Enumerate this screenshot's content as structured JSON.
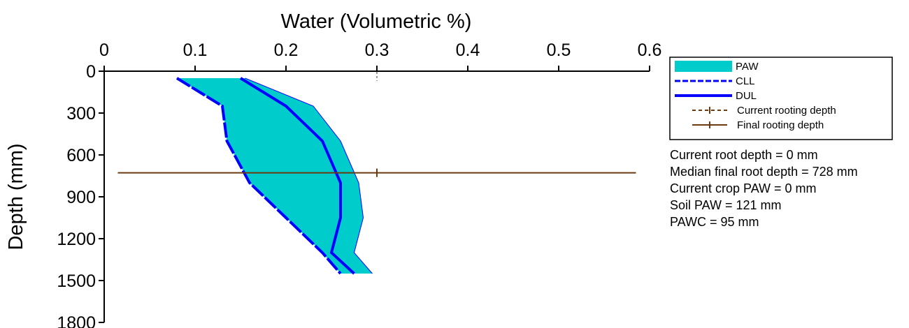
{
  "chart_data": {
    "type": "area",
    "xlabel": "Water (Volumetric %)",
    "ylabel": "Depth (mm)",
    "xlim": [
      0,
      0.6
    ],
    "ylim": [
      0,
      1800
    ],
    "x_ticks": [
      "0",
      "0.1",
      "0.2",
      "0.3",
      "0.4",
      "0.5",
      "0.6"
    ],
    "y_ticks": [
      "0",
      "300",
      "600",
      "900",
      "1200",
      "1500",
      "1800"
    ],
    "x_axis_position": "top",
    "y_axis_inverted": true,
    "grid": false,
    "legend_placement": "right",
    "series": [
      {
        "name": "CLL",
        "style": "dashed",
        "color": "#0000ff",
        "points": [
          [
            0.08,
            50
          ],
          [
            0.13,
            250
          ],
          [
            0.135,
            500
          ],
          [
            0.16,
            800
          ],
          [
            0.2,
            1050
          ],
          [
            0.24,
            1300
          ],
          [
            0.26,
            1450
          ]
        ]
      },
      {
        "name": "DUL",
        "style": "solid",
        "color": "#0000ff",
        "points": [
          [
            0.15,
            50
          ],
          [
            0.2,
            250
          ],
          [
            0.24,
            500
          ],
          [
            0.26,
            800
          ],
          [
            0.26,
            1050
          ],
          [
            0.25,
            1300
          ],
          [
            0.275,
            1450
          ]
        ]
      },
      {
        "name": "PAW",
        "style": "fill",
        "color": "#00cccc",
        "note_outer_bound": [
          [
            0.155,
            50
          ],
          [
            0.23,
            250
          ],
          [
            0.26,
            500
          ],
          [
            0.28,
            800
          ],
          [
            0.285,
            1050
          ],
          [
            0.275,
            1300
          ],
          [
            0.295,
            1450
          ]
        ]
      }
    ],
    "final_rooting_depth": {
      "name": "Final rooting depth",
      "depth": 728,
      "x_range": [
        0.015,
        0.585
      ],
      "marker_x": 0.3,
      "color": "#6b3a0f"
    },
    "current_rooting_depth": {
      "name": "Current rooting depth",
      "depth": 0,
      "marker_x": 0.3,
      "color": "#6b3a0f"
    }
  },
  "legend": {
    "items": [
      {
        "label": "PAW",
        "kind": "fill",
        "color": "#00cccc"
      },
      {
        "label": "CLL",
        "kind": "dashed",
        "color": "#0000ff"
      },
      {
        "label": "DUL",
        "kind": "solid",
        "color": "#0000ff"
      },
      {
        "label": "Current rooting depth",
        "kind": "dashed-tick",
        "color": "#6b3a0f"
      },
      {
        "label": "Final rooting depth",
        "kind": "solid-tick",
        "color": "#6b3a0f"
      }
    ]
  },
  "stats": {
    "current_root_depth": "Current root depth = 0 mm",
    "median_final_root_depth": "Median final root depth = 728 mm",
    "current_crop_paw": "Current crop PAW = 0 mm",
    "soil_paw": "Soil PAW = 121 mm",
    "pawc": "PAWC = 95 mm"
  }
}
